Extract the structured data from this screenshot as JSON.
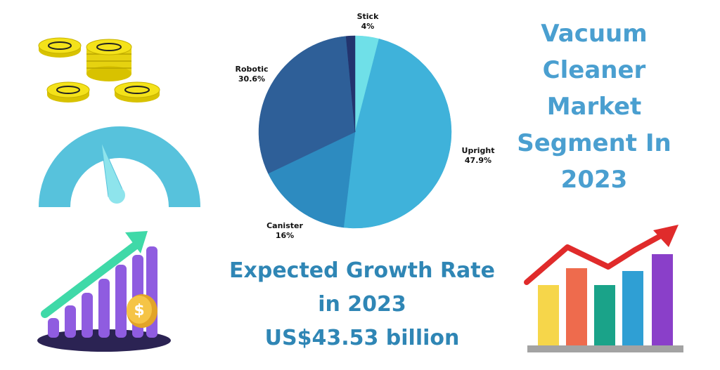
{
  "title_lines": [
    "Vacuum",
    "Cleaner",
    "Market",
    "Segment In",
    "2023"
  ],
  "growth": {
    "line1": "Expected Growth Rate",
    "line2": "in 2023",
    "line3": "US$43.53 billion"
  },
  "chart_data": {
    "type": "pie",
    "title": "Vacuum Cleaner Market Segment In 2023",
    "unit": "%",
    "slices": [
      {
        "label": "Stick",
        "value": 4,
        "display": "4%",
        "color": "#6fe0e8"
      },
      {
        "label": "Upright",
        "value": 47.9,
        "display": "47.9%",
        "color": "#3fb2da"
      },
      {
        "label": "Canister",
        "value": 16,
        "display": "16%",
        "color": "#2d8bc0"
      },
      {
        "label": "Robotic",
        "value": 30.6,
        "display": "30.6%",
        "color": "#2e5f98"
      },
      {
        "label": "",
        "value": 1.5,
        "display": "",
        "color": "#23346e"
      }
    ]
  },
  "decor": {
    "coins_icon": "gold-coins-stack",
    "gauge_icon": "speedometer-gauge",
    "growth_bars_icon": "purple-growth-bars-with-dollar-coin",
    "colored_bars_icon": "colorful-bar-chart-with-red-arrow"
  },
  "colors": {
    "title": "#4a9fd0",
    "growth_text": "#2f86b5",
    "gauge": "#57c2dc",
    "coin": "#f4e21a"
  }
}
